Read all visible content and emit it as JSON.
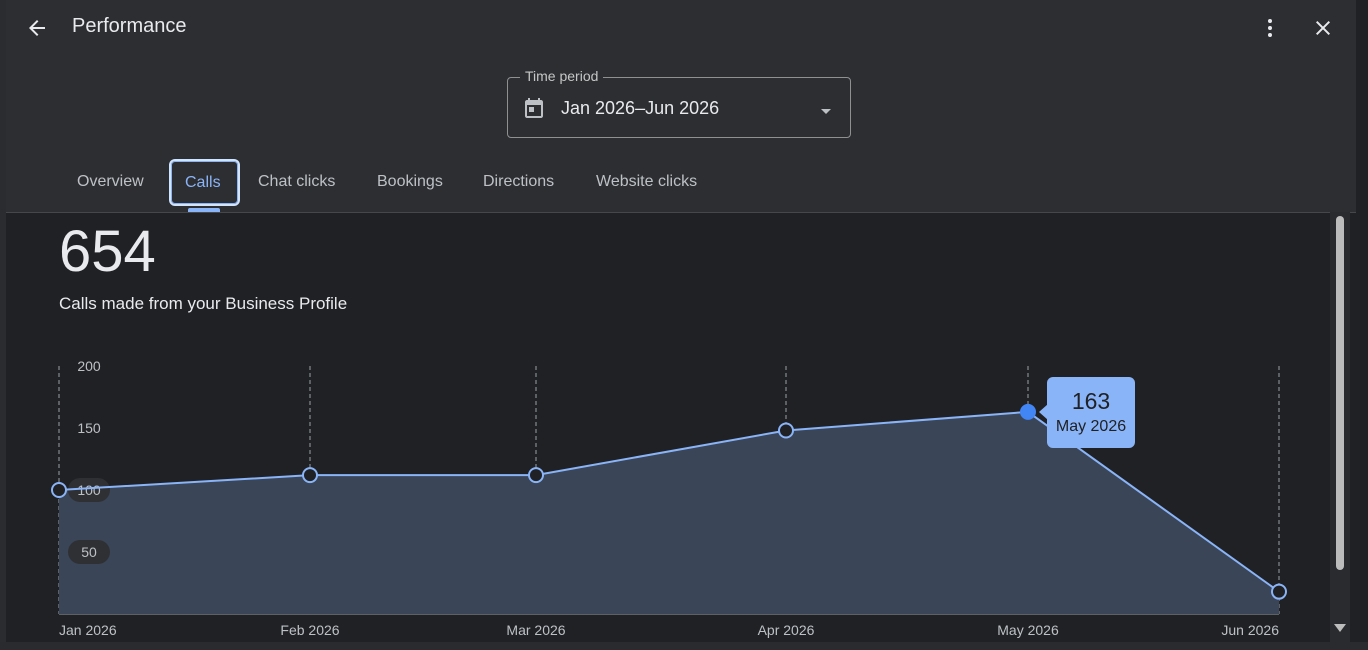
{
  "header": {
    "title": "Performance",
    "back_icon": "arrow-left-icon",
    "menu_icon": "more-vert-icon",
    "close_icon": "close-icon"
  },
  "time_period": {
    "legend": "Time period",
    "value": "Jan 2026–Jun 2026",
    "icon": "calendar-icon"
  },
  "tabs": [
    {
      "label": "Overview",
      "active": false
    },
    {
      "label": "Calls",
      "active": true
    },
    {
      "label": "Chat clicks",
      "active": false
    },
    {
      "label": "Bookings",
      "active": false
    },
    {
      "label": "Directions",
      "active": false
    },
    {
      "label": "Website clicks",
      "active": false
    }
  ],
  "summary": {
    "total": "654",
    "description": "Calls made from your Business Profile"
  },
  "colors": {
    "accent": "#8ab4f8",
    "area_fill": "#3a4557",
    "highlight_point": "#4285f4"
  },
  "chart_data": {
    "type": "area",
    "x": [
      "Jan 2026",
      "Feb 2026",
      "Mar 2026",
      "Apr 2026",
      "May 2026",
      "Jun 2026"
    ],
    "values": [
      100,
      112,
      112,
      148,
      163,
      18
    ],
    "y_ticks": [
      "200",
      "150",
      "100",
      "50"
    ],
    "ylim": [
      0,
      200
    ],
    "grid": "vertical dashed",
    "tooltip": {
      "value": "163",
      "label": "May 2026",
      "index": 4
    }
  }
}
